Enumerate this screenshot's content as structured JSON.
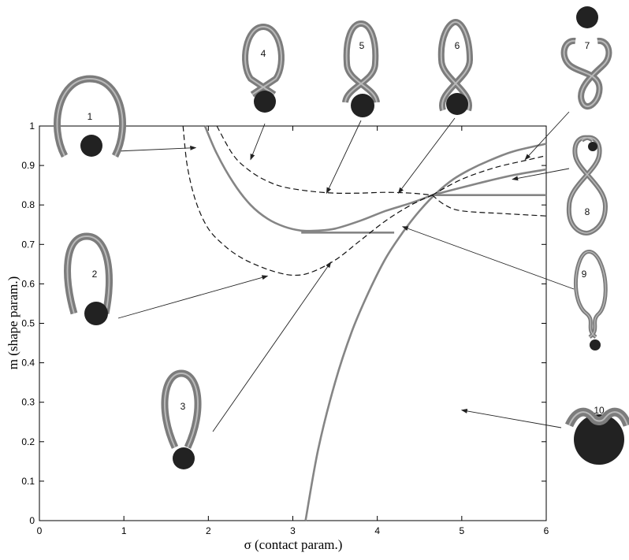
{
  "chart_data": {
    "type": "line",
    "title": "",
    "xlabel": "σ (contact param.)",
    "ylabel": "m (shape param.)",
    "xlim": [
      0,
      6
    ],
    "ylim": [
      0,
      1
    ],
    "xticks": [
      "0",
      "1",
      "2",
      "3",
      "4",
      "5",
      "6"
    ],
    "yticks": [
      "0",
      "0.1",
      "0.2",
      "0.3",
      "0.4",
      "0.5",
      "0.6",
      "0.7",
      "0.8",
      "0.9",
      "1"
    ],
    "grid": false,
    "series": [
      {
        "style": "solid",
        "x": [
          1.96,
          2.1,
          2.3,
          2.5,
          2.7,
          2.9,
          3.1,
          3.3,
          3.5,
          3.8,
          4.1,
          4.4,
          4.65
        ],
        "y": [
          1.0,
          0.93,
          0.855,
          0.8,
          0.765,
          0.745,
          0.735,
          0.735,
          0.74,
          0.76,
          0.785,
          0.805,
          0.825
        ]
      },
      {
        "style": "solid",
        "x": [
          3.15,
          3.3,
          3.5,
          3.7,
          3.9,
          4.1,
          4.3,
          4.5,
          4.7,
          4.9,
          5.1,
          5.3,
          5.6,
          6.0
        ],
        "y": [
          0.0,
          0.18,
          0.35,
          0.48,
          0.58,
          0.665,
          0.73,
          0.785,
          0.83,
          0.865,
          0.89,
          0.91,
          0.935,
          0.955
        ]
      },
      {
        "style": "solid",
        "x": [
          3.1,
          4.2
        ],
        "y": [
          0.73,
          0.73
        ]
      },
      {
        "style": "solid",
        "x": [
          4.65,
          6.0
        ],
        "y": [
          0.825,
          0.825
        ]
      },
      {
        "style": "solid",
        "x": [
          4.65,
          5.2,
          5.6,
          6.0
        ],
        "y": [
          0.825,
          0.855,
          0.875,
          0.89
        ]
      },
      {
        "style": "dashed",
        "x": [
          2.1,
          2.3,
          2.5,
          2.7,
          2.9,
          3.2,
          3.5,
          3.8,
          4.1,
          4.4,
          4.65
        ],
        "y": [
          1.0,
          0.925,
          0.885,
          0.86,
          0.845,
          0.835,
          0.83,
          0.83,
          0.832,
          0.83,
          0.825
        ]
      },
      {
        "style": "dashed",
        "x": [
          1.7,
          1.75,
          1.85,
          2.0,
          2.2,
          2.4,
          2.6,
          2.8,
          3.0,
          3.2,
          3.5,
          3.8,
          4.1,
          4.4,
          4.65
        ],
        "y": [
          1.0,
          0.9,
          0.81,
          0.74,
          0.695,
          0.665,
          0.645,
          0.63,
          0.622,
          0.628,
          0.66,
          0.71,
          0.76,
          0.8,
          0.825
        ]
      },
      {
        "style": "dashed",
        "x": [
          4.65,
          5.0,
          5.4,
          5.8,
          6.0
        ],
        "y": [
          0.825,
          0.865,
          0.895,
          0.915,
          0.925
        ]
      },
      {
        "style": "dashed",
        "x": [
          4.65,
          4.8,
          5.0,
          5.5,
          6.0
        ],
        "y": [
          0.825,
          0.8,
          0.785,
          0.778,
          0.772
        ]
      }
    ],
    "annotations": [
      {
        "text": "1",
        "target": [
          1.85,
          0.945
        ]
      },
      {
        "text": "2",
        "target": [
          2.7,
          0.62
        ]
      },
      {
        "text": "3",
        "target": [
          3.45,
          0.655
        ]
      },
      {
        "text": "4",
        "target": [
          2.5,
          0.915
        ]
      },
      {
        "text": "5",
        "target": [
          3.4,
          0.83
        ]
      },
      {
        "text": "6",
        "target": [
          4.25,
          0.83
        ]
      },
      {
        "text": "7",
        "target": [
          5.75,
          0.915
        ]
      },
      {
        "text": "8",
        "target": [
          5.6,
          0.865
        ]
      },
      {
        "text": "9",
        "target": [
          4.3,
          0.745
        ]
      },
      {
        "text": "10",
        "target": [
          5.0,
          0.28
        ]
      }
    ]
  }
}
